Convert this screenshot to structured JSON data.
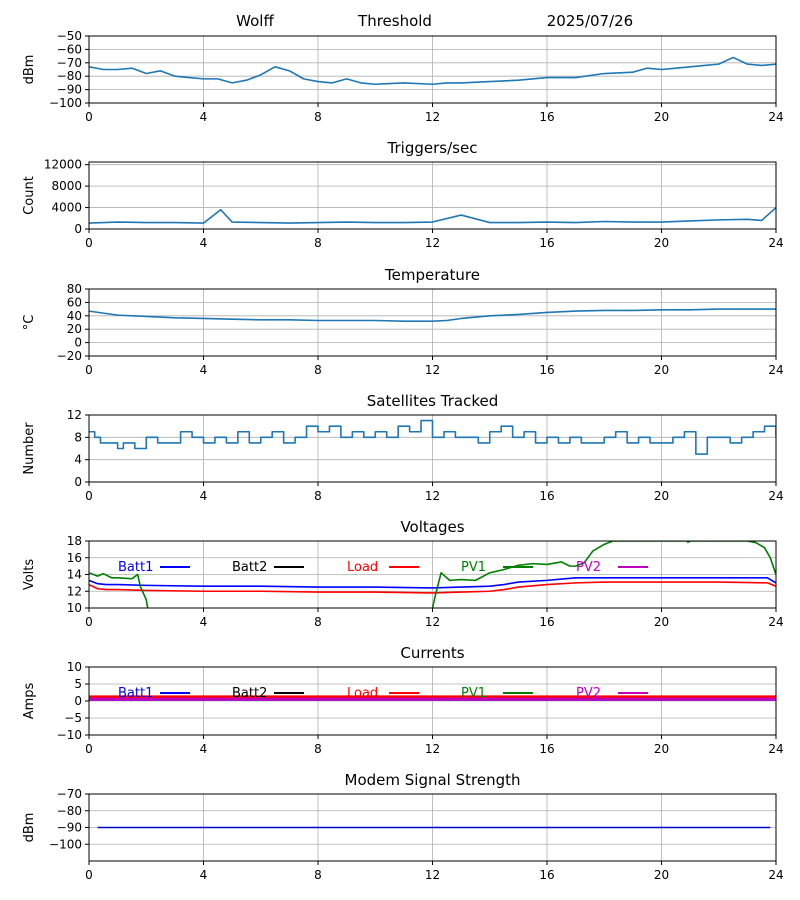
{
  "header": {
    "station": "Wolff",
    "product": "Threshold",
    "date": "2025/07/26"
  },
  "chart_data": [
    {
      "id": "threshold",
      "type": "line",
      "title": "",
      "ylabel": "dBm",
      "xlim": [
        0,
        24
      ],
      "ylim": [
        -100,
        -50
      ],
      "xticks": [
        0,
        4,
        8,
        12,
        16,
        20,
        24
      ],
      "yticks": [
        -100,
        -90,
        -80,
        -70,
        -60,
        -50
      ],
      "grid": true,
      "series": [
        {
          "color": "#1f77b4",
          "x": [
            0,
            0.5,
            1,
            1.5,
            2,
            2.5,
            3,
            3.5,
            4,
            4.5,
            5,
            5.5,
            6,
            6.5,
            7,
            7.5,
            8,
            8.5,
            9,
            9.5,
            10,
            11,
            12,
            12.5,
            13,
            14,
            15,
            16,
            17,
            18,
            19,
            19.5,
            20,
            20.5,
            21,
            21.5,
            22,
            22.5,
            23,
            23.5,
            24
          ],
          "y": [
            -73,
            -75,
            -75,
            -74,
            -78,
            -76,
            -80,
            -81,
            -82,
            -82,
            -85,
            -83,
            -79,
            -73,
            -76,
            -82,
            -84,
            -85,
            -82,
            -85,
            -86,
            -85,
            -86,
            -85,
            -85,
            -84,
            -83,
            -81,
            -81,
            -78,
            -77,
            -74,
            -75,
            -74,
            -73,
            -72,
            -71,
            -66,
            -71,
            -72,
            -71
          ]
        }
      ]
    },
    {
      "id": "triggers",
      "type": "line",
      "title": "Triggers/sec",
      "ylabel": "Count",
      "xlim": [
        0,
        24
      ],
      "ylim": [
        0,
        12500
      ],
      "xticks": [
        0,
        4,
        8,
        12,
        16,
        20,
        24
      ],
      "yticks": [
        0,
        4000,
        8000,
        12000
      ],
      "grid": true,
      "series": [
        {
          "color": "#1f77b4",
          "x": [
            0,
            1,
            2,
            3,
            4,
            4.6,
            5,
            6,
            7,
            8,
            9,
            10,
            11,
            12,
            13,
            14,
            15,
            16,
            17,
            18,
            19,
            20,
            21,
            22,
            23,
            23.5,
            24
          ],
          "y": [
            1100,
            1300,
            1200,
            1200,
            1100,
            3600,
            1300,
            1200,
            1100,
            1200,
            1300,
            1200,
            1200,
            1300,
            2600,
            1200,
            1200,
            1300,
            1200,
            1400,
            1300,
            1300,
            1500,
            1700,
            1800,
            1600,
            4000
          ]
        }
      ]
    },
    {
      "id": "temperature",
      "type": "line",
      "title": "Temperature",
      "ylabel": "°C",
      "xlim": [
        0,
        24
      ],
      "ylim": [
        -20,
        80
      ],
      "xticks": [
        0,
        4,
        8,
        12,
        16,
        20,
        24
      ],
      "yticks": [
        -20,
        0,
        20,
        40,
        60,
        80
      ],
      "grid": true,
      "series": [
        {
          "color": "#1f77b4",
          "x": [
            0,
            0.5,
            1,
            2,
            3,
            4,
            5,
            6,
            7,
            8,
            9,
            10,
            11,
            12,
            12.5,
            13,
            14,
            15,
            16,
            17,
            18,
            19,
            20,
            21,
            22,
            23,
            24
          ],
          "y": [
            47,
            44,
            41,
            39,
            37,
            36,
            35,
            34,
            34,
            33,
            33,
            33,
            32,
            32,
            33,
            36,
            40,
            42,
            45,
            47,
            48,
            48,
            49,
            49,
            50,
            50,
            50
          ]
        }
      ]
    },
    {
      "id": "satellites",
      "type": "line",
      "title": "Satellites Tracked",
      "ylabel": "Number",
      "xlim": [
        0,
        24
      ],
      "ylim": [
        0,
        12
      ],
      "xticks": [
        0,
        4,
        8,
        12,
        16,
        20,
        24
      ],
      "yticks": [
        0,
        4,
        8,
        12
      ],
      "grid": true,
      "series": [
        {
          "color": "#1f77b4",
          "step": true,
          "x": [
            0,
            0.2,
            0.4,
            0.8,
            1,
            1.2,
            1.6,
            2,
            2.4,
            2.8,
            3.2,
            3.6,
            4,
            4.4,
            4.8,
            5.2,
            5.6,
            6,
            6.4,
            6.8,
            7.2,
            7.6,
            8,
            8.4,
            8.8,
            9.2,
            9.6,
            10,
            10.4,
            10.8,
            11.2,
            11.6,
            12,
            12.4,
            12.8,
            13.2,
            13.6,
            14,
            14.4,
            14.8,
            15.2,
            15.6,
            16,
            16.4,
            16.8,
            17.2,
            17.6,
            18,
            18.4,
            18.8,
            19.2,
            19.6,
            20,
            20.4,
            20.8,
            21.2,
            21.6,
            22,
            22.4,
            22.8,
            23.2,
            23.6,
            24
          ],
          "y": [
            9,
            8,
            7,
            7,
            6,
            7,
            6,
            8,
            7,
            7,
            9,
            8,
            7,
            8,
            7,
            9,
            7,
            8,
            9,
            7,
            8,
            10,
            9,
            10,
            8,
            9,
            8,
            9,
            8,
            10,
            9,
            11,
            8,
            9,
            8,
            8,
            7,
            9,
            10,
            8,
            9,
            7,
            8,
            7,
            8,
            7,
            7,
            8,
            9,
            7,
            8,
            7,
            7,
            8,
            9,
            5,
            8,
            8,
            7,
            8,
            9,
            10,
            8
          ]
        }
      ]
    },
    {
      "id": "voltages",
      "type": "line",
      "title": "Voltages",
      "ylabel": "Volts",
      "xlim": [
        0,
        24
      ],
      "ylim": [
        10,
        18
      ],
      "xticks": [
        0,
        4,
        8,
        12,
        16,
        20,
        24
      ],
      "yticks": [
        10,
        12,
        14,
        16,
        18
      ],
      "grid": true,
      "legend": [
        {
          "name": "Batt1",
          "color": "#0000ff"
        },
        {
          "name": "Batt2",
          "color": "#000000"
        },
        {
          "name": "Load",
          "color": "#ff0000"
        },
        {
          "name": "PV1",
          "color": "#008000"
        },
        {
          "name": "PV2",
          "color": "#bf00bf"
        }
      ],
      "series": [
        {
          "color": "#0000ff",
          "x": [
            0,
            0.3,
            0.6,
            1,
            2,
            4,
            6,
            8,
            10,
            12,
            13,
            14,
            14.5,
            15,
            16,
            17,
            18,
            20,
            22,
            23.7,
            24
          ],
          "y": [
            13.3,
            12.9,
            12.8,
            12.8,
            12.7,
            12.6,
            12.6,
            12.5,
            12.5,
            12.4,
            12.5,
            12.6,
            12.8,
            13.1,
            13.3,
            13.6,
            13.6,
            13.6,
            13.6,
            13.6,
            13.0
          ]
        },
        {
          "color": "#ff0000",
          "x": [
            0,
            0.3,
            0.6,
            1,
            2,
            4,
            6,
            8,
            10,
            12,
            13,
            14,
            14.5,
            15,
            16,
            17,
            18,
            20,
            22,
            23.7,
            24
          ],
          "y": [
            12.8,
            12.3,
            12.2,
            12.2,
            12.1,
            12.0,
            12.0,
            11.9,
            11.9,
            11.8,
            11.9,
            12.0,
            12.2,
            12.5,
            12.8,
            13.0,
            13.1,
            13.1,
            13.1,
            13.0,
            12.6
          ]
        },
        {
          "color": "#008000",
          "x": [
            0,
            0.3,
            0.5,
            0.8,
            1,
            1.5,
            1.7,
            1.8,
            2,
            2.05
          ],
          "y": [
            14.2,
            13.8,
            14.1,
            13.6,
            13.6,
            13.5,
            14.0,
            12.5,
            11.0,
            10
          ]
        },
        {
          "color": "#008000",
          "x": [
            12,
            12.1,
            12.3,
            12.6,
            13,
            13.5,
            14,
            14.5,
            15,
            15.5,
            16,
            16.5,
            16.8,
            17,
            17.3,
            17.6,
            18,
            18.3,
            23,
            23.3,
            23.6,
            23.8,
            24
          ],
          "y": [
            10,
            11.5,
            14.2,
            13.3,
            13.4,
            13.3,
            14.2,
            14.6,
            15.1,
            15.3,
            15.2,
            15.5,
            15.0,
            15.0,
            15.4,
            16.8,
            17.6,
            18,
            18,
            17.8,
            17.2,
            16.0,
            14.0
          ]
        },
        {
          "color": "#008000",
          "x": [
            20.9,
            21.0
          ],
          "y": [
            17.8,
            18
          ]
        }
      ]
    },
    {
      "id": "currents",
      "type": "line",
      "title": "Currents",
      "ylabel": "Amps",
      "xlim": [
        0,
        24
      ],
      "ylim": [
        -10,
        10
      ],
      "xticks": [
        0,
        4,
        8,
        12,
        16,
        20,
        24
      ],
      "yticks": [
        -10,
        -5,
        0,
        5,
        10
      ],
      "grid": true,
      "legend": [
        {
          "name": "Batt1",
          "color": "#0000ff"
        },
        {
          "name": "Batt2",
          "color": "#000000"
        },
        {
          "name": "Load",
          "color": "#ff0000"
        },
        {
          "name": "PV1",
          "color": "#008000"
        },
        {
          "name": "PV2",
          "color": "#bf00bf"
        }
      ],
      "series": [
        {
          "color": "#ff0000",
          "width": 3,
          "x": [
            0,
            24
          ],
          "y": [
            1.2,
            1.2
          ]
        },
        {
          "color": "#0000ff",
          "width": 1.5,
          "x": [
            0,
            24
          ],
          "y": [
            0.3,
            0.3
          ]
        },
        {
          "color": "#bf00bf",
          "width": 3,
          "x": [
            0,
            24
          ],
          "y": [
            0.5,
            0.5
          ]
        }
      ]
    },
    {
      "id": "modem",
      "type": "line",
      "title": "Modem Signal Strength",
      "ylabel": "dBm",
      "xlim": [
        0,
        24
      ],
      "ylim": [
        -110,
        -70
      ],
      "xticks": [
        0,
        4,
        8,
        12,
        16,
        20,
        24
      ],
      "yticks": [
        -100,
        -90,
        -80,
        -70
      ],
      "grid": true,
      "series": [
        {
          "color": "#0000cc",
          "x": [
            0.3,
            23.8
          ],
          "y": [
            -90,
            -90
          ]
        }
      ]
    }
  ]
}
